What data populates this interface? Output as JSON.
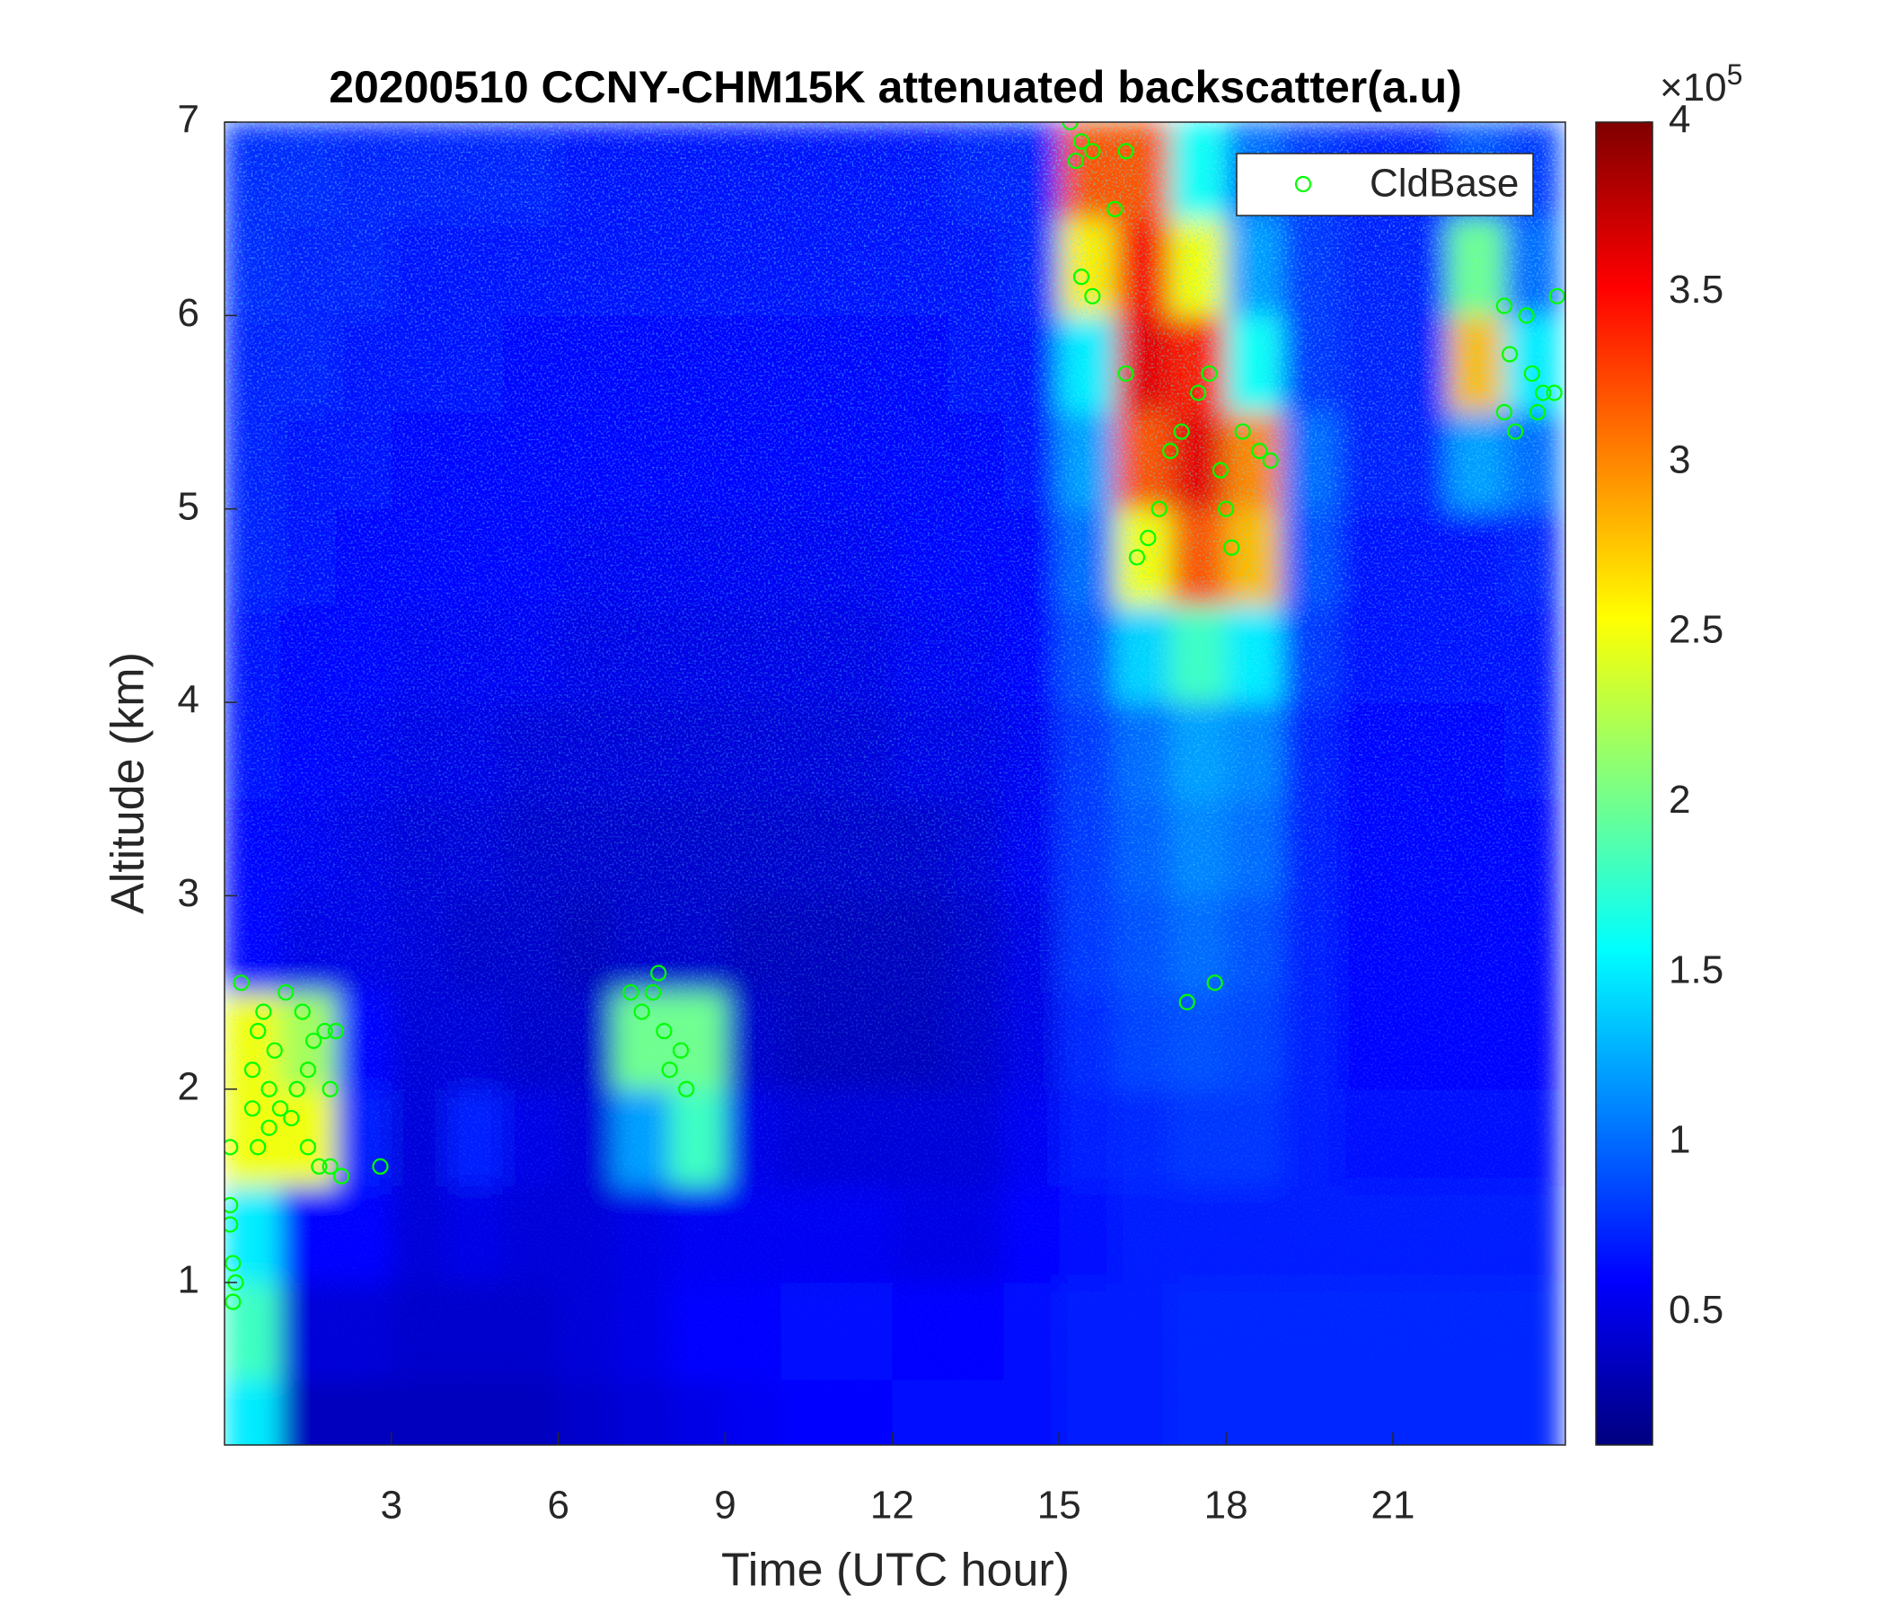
{
  "chart_data": {
    "type": "heatmap",
    "title": "20200510 CCNY-CHM15K attenuated backscatter(a.u)",
    "x_label": "Time (UTC hour)",
    "y_label": "Altitude (km)",
    "colormap": "jet",
    "x": [
      0.5,
      1.5,
      2.5,
      3.5,
      4.5,
      5.5,
      6.5,
      7.5,
      8.5,
      9.5,
      10.5,
      11.5,
      12.5,
      13.5,
      14.5,
      15.5,
      16.5,
      17.5,
      18.5,
      19.5,
      20.5,
      21.5,
      22.5,
      23.5
    ],
    "y": [
      0.25,
      0.75,
      1.25,
      1.75,
      2.25,
      2.75,
      3.25,
      3.75,
      4.25,
      4.75,
      5.25,
      5.75,
      6.25,
      6.75
    ],
    "z": [
      [
        1.5,
        0.35,
        0.35,
        0.35,
        0.35,
        0.35,
        0.4,
        0.45,
        0.5,
        0.55,
        0.6,
        0.6,
        0.65,
        0.65,
        0.65,
        0.7,
        0.7,
        0.75,
        0.75,
        0.75,
        0.75,
        0.75,
        0.75,
        0.75
      ],
      [
        1.8,
        0.45,
        0.45,
        0.4,
        0.4,
        0.4,
        0.45,
        0.5,
        0.6,
        0.6,
        0.65,
        0.65,
        0.6,
        0.6,
        0.65,
        0.7,
        0.7,
        0.75,
        0.75,
        0.75,
        0.75,
        0.75,
        0.75,
        0.75
      ],
      [
        1.5,
        0.6,
        0.6,
        0.45,
        0.5,
        0.45,
        0.45,
        0.5,
        0.55,
        0.55,
        0.55,
        0.55,
        0.5,
        0.5,
        0.6,
        0.65,
        0.7,
        0.7,
        0.7,
        0.7,
        0.7,
        0.7,
        0.7,
        0.7
      ],
      [
        2.5,
        2.5,
        0.7,
        0.45,
        0.7,
        0.5,
        0.45,
        1.2,
        1.8,
        0.5,
        0.45,
        0.45,
        0.45,
        0.45,
        0.55,
        0.7,
        0.75,
        0.8,
        0.8,
        0.7,
        0.65,
        0.65,
        0.65,
        0.65
      ],
      [
        2.5,
        2.2,
        0.6,
        0.45,
        0.45,
        0.4,
        0.4,
        2.0,
        2.0,
        0.4,
        0.35,
        0.35,
        0.35,
        0.4,
        0.5,
        0.75,
        0.85,
        0.9,
        0.85,
        0.7,
        0.6,
        0.6,
        0.6,
        0.6
      ],
      [
        0.6,
        0.5,
        0.5,
        0.45,
        0.4,
        0.4,
        0.35,
        0.4,
        0.4,
        0.35,
        0.35,
        0.35,
        0.35,
        0.4,
        0.5,
        0.8,
        0.9,
        1.0,
        0.9,
        0.7,
        0.6,
        0.6,
        0.6,
        0.6
      ],
      [
        0.6,
        0.55,
        0.5,
        0.45,
        0.45,
        0.4,
        0.4,
        0.4,
        0.4,
        0.4,
        0.4,
        0.4,
        0.4,
        0.45,
        0.55,
        0.8,
        0.95,
        1.1,
        1.0,
        0.7,
        0.6,
        0.6,
        0.6,
        0.6
      ],
      [
        0.65,
        0.6,
        0.55,
        0.5,
        0.5,
        0.45,
        0.45,
        0.45,
        0.45,
        0.45,
        0.45,
        0.45,
        0.5,
        0.5,
        0.55,
        0.8,
        1.0,
        1.2,
        1.1,
        0.7,
        0.6,
        0.6,
        0.6,
        0.65
      ],
      [
        0.65,
        0.6,
        0.6,
        0.55,
        0.55,
        0.55,
        0.5,
        0.5,
        0.5,
        0.5,
        0.5,
        0.5,
        0.55,
        0.55,
        0.6,
        0.9,
        1.4,
        1.8,
        1.5,
        0.8,
        0.65,
        0.65,
        0.65,
        0.65
      ],
      [
        0.7,
        0.65,
        0.6,
        0.6,
        0.6,
        0.6,
        0.55,
        0.55,
        0.55,
        0.55,
        0.55,
        0.55,
        0.6,
        0.6,
        0.6,
        1.0,
        2.5,
        3.2,
        2.8,
        0.9,
        0.65,
        0.65,
        0.65,
        0.7
      ],
      [
        0.7,
        0.65,
        0.65,
        0.6,
        0.6,
        0.6,
        0.6,
        0.6,
        0.6,
        0.6,
        0.6,
        0.6,
        0.6,
        0.6,
        0.65,
        1.2,
        3.2,
        3.6,
        3.0,
        1.0,
        0.7,
        0.7,
        1.2,
        1.0
      ],
      [
        0.7,
        0.7,
        0.65,
        0.65,
        0.65,
        0.6,
        0.6,
        0.6,
        0.6,
        0.6,
        0.6,
        0.6,
        0.6,
        0.65,
        0.65,
        1.5,
        3.6,
        3.4,
        1.6,
        0.8,
        0.7,
        0.7,
        2.8,
        1.5
      ],
      [
        0.75,
        0.7,
        0.7,
        0.65,
        0.65,
        0.65,
        0.65,
        0.65,
        0.65,
        0.65,
        0.65,
        0.65,
        0.65,
        0.65,
        0.7,
        2.6,
        3.5,
        2.5,
        1.2,
        0.8,
        0.7,
        0.7,
        2.0,
        1.0
      ],
      [
        0.75,
        0.75,
        0.7,
        0.7,
        0.7,
        0.7,
        0.65,
        0.65,
        0.65,
        0.65,
        0.65,
        0.65,
        0.65,
        0.7,
        0.7,
        3.2,
        3.2,
        1.6,
        1.0,
        0.8,
        0.7,
        0.7,
        0.9,
        0.8
      ]
    ],
    "xlim": [
      0,
      24.1
    ],
    "ylim": [
      0.16,
      7
    ],
    "xticks": [
      3,
      6,
      9,
      12,
      15,
      18,
      21
    ],
    "yticks": [
      1,
      2,
      3,
      4,
      5,
      6,
      7
    ],
    "clim": [
      0.11,
      4
    ],
    "cticks": [
      0.5,
      1,
      1.5,
      2,
      2.5,
      3,
      3.5,
      4
    ],
    "colorbar_exponent_base": "×10",
    "colorbar_exponent": "5",
    "legend": "upper right",
    "series": [
      {
        "name": "CldBase",
        "type": "scatter",
        "color": "#00ff00",
        "x": [
          0.1,
          0.1,
          0.15,
          0.15,
          0.2,
          0.1,
          0.3,
          0.5,
          0.5,
          0.6,
          0.6,
          0.7,
          0.8,
          0.8,
          0.9,
          1.0,
          1.1,
          1.2,
          1.3,
          1.4,
          1.5,
          1.5,
          1.6,
          1.7,
          1.8,
          1.9,
          1.9,
          2.0,
          2.1,
          2.8,
          7.3,
          7.5,
          7.7,
          7.8,
          7.9,
          8.0,
          8.2,
          8.3,
          15.2,
          15.3,
          15.4,
          15.6,
          16.0,
          15.4,
          15.6,
          16.2,
          16.2,
          16.4,
          16.6,
          16.8,
          17.0,
          17.2,
          17.3,
          17.7,
          17.8,
          17.9,
          18.0,
          18.1,
          18.3,
          18.6,
          18.8,
          17.5,
          23.0,
          23.0,
          23.1,
          23.2,
          23.4,
          23.5,
          23.6,
          23.7,
          23.9,
          23.95
        ],
        "y": [
          1.4,
          1.3,
          1.1,
          0.9,
          1.0,
          1.7,
          2.55,
          2.1,
          1.9,
          2.3,
          1.7,
          2.4,
          2.0,
          1.8,
          2.2,
          1.9,
          2.5,
          1.85,
          2.0,
          2.4,
          1.7,
          2.1,
          2.25,
          1.6,
          2.3,
          2.0,
          1.6,
          2.3,
          1.55,
          1.6,
          2.5,
          2.4,
          2.5,
          2.6,
          2.3,
          2.1,
          2.2,
          2.0,
          7.0,
          6.8,
          6.9,
          6.85,
          6.55,
          6.2,
          6.1,
          6.85,
          5.7,
          4.75,
          4.85,
          5.0,
          5.3,
          5.4,
          2.45,
          5.7,
          2.55,
          5.2,
          5.0,
          4.8,
          5.4,
          5.3,
          5.25,
          5.6,
          6.05,
          5.5,
          5.8,
          5.4,
          6.0,
          5.7,
          5.5,
          5.6,
          5.6,
          6.1
        ]
      }
    ]
  }
}
